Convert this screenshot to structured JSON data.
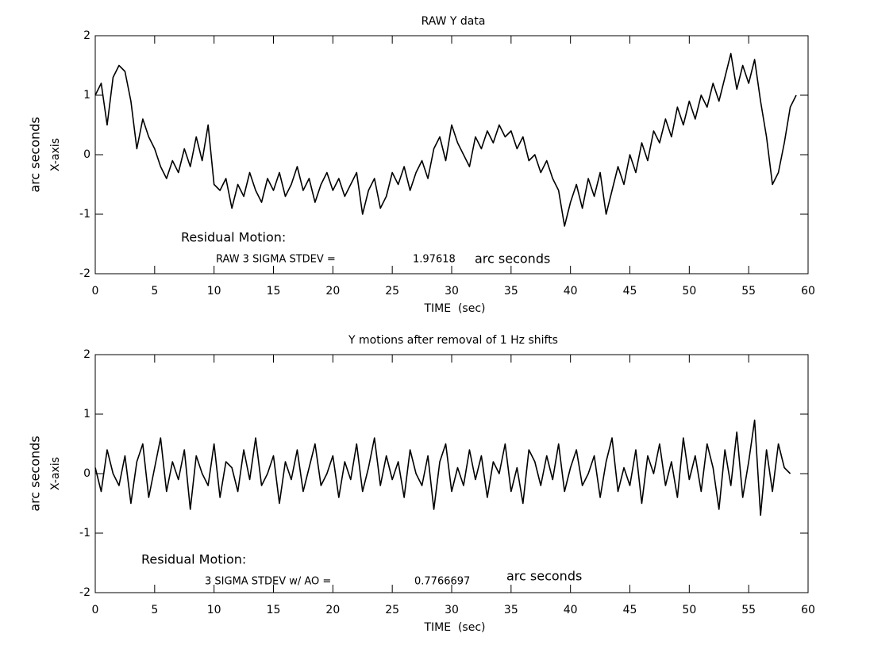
{
  "chart_data": [
    {
      "type": "line",
      "title": "RAW Y data",
      "xlabel": "TIME  (sec)",
      "ylabel": "arc seconds",
      "ylabel_sub": "X-axis",
      "annotations": [
        "Residual Motion:",
        "RAW 3 SIGMA STDEV =",
        "1.97618",
        "arc seconds"
      ],
      "xlim": [
        0,
        60
      ],
      "xticks": [
        0,
        5,
        10,
        15,
        20,
        25,
        30,
        35,
        40,
        45,
        50,
        55,
        60
      ],
      "ylim": [
        -2,
        2
      ],
      "yticks": [
        -2,
        -1,
        0,
        1,
        2
      ],
      "color": "#000000",
      "x": [
        0,
        0.5,
        1,
        1.5,
        2,
        2.5,
        3,
        3.5,
        4,
        4.5,
        5,
        5.5,
        6,
        6.5,
        7,
        7.5,
        8,
        8.5,
        9,
        9.5,
        10,
        10.5,
        11,
        11.5,
        12,
        12.5,
        13,
        13.5,
        14,
        14.5,
        15,
        15.5,
        16,
        16.5,
        17,
        17.5,
        18,
        18.5,
        19,
        19.5,
        20,
        20.5,
        21,
        21.5,
        22,
        22.5,
        23,
        23.5,
        24,
        24.5,
        25,
        25.5,
        26,
        26.5,
        27,
        27.5,
        28,
        28.5,
        29,
        29.5,
        30,
        30.5,
        31,
        31.5,
        32,
        32.5,
        33,
        33.5,
        34,
        34.5,
        35,
        35.5,
        36,
        36.5,
        37,
        37.5,
        38,
        38.5,
        39,
        39.5,
        40,
        40.5,
        41,
        41.5,
        42,
        42.5,
        43,
        43.5,
        44,
        44.5,
        45,
        45.5,
        46,
        46.5,
        47,
        47.5,
        48,
        48.5,
        49,
        49.5,
        50,
        50.5,
        51,
        51.5,
        52,
        52.5,
        53,
        53.5,
        54,
        54.5,
        55,
        55.5,
        56,
        56.5,
        57,
        57.5,
        58,
        58.5,
        59
      ],
      "values": [
        1.0,
        1.2,
        0.5,
        1.3,
        1.5,
        1.4,
        0.9,
        0.1,
        0.6,
        0.3,
        0.1,
        -0.2,
        -0.4,
        -0.1,
        -0.3,
        0.1,
        -0.2,
        0.3,
        -0.1,
        0.5,
        -0.5,
        -0.6,
        -0.4,
        -0.9,
        -0.5,
        -0.7,
        -0.3,
        -0.6,
        -0.8,
        -0.4,
        -0.6,
        -0.3,
        -0.7,
        -0.5,
        -0.2,
        -0.6,
        -0.4,
        -0.8,
        -0.5,
        -0.3,
        -0.6,
        -0.4,
        -0.7,
        -0.5,
        -0.3,
        -1.0,
        -0.6,
        -0.4,
        -0.9,
        -0.7,
        -0.3,
        -0.5,
        -0.2,
        -0.6,
        -0.3,
        -0.1,
        -0.4,
        0.1,
        0.3,
        -0.1,
        0.5,
        0.2,
        0.0,
        -0.2,
        0.3,
        0.1,
        0.4,
        0.2,
        0.5,
        0.3,
        0.4,
        0.1,
        0.3,
        -0.1,
        0.0,
        -0.3,
        -0.1,
        -0.4,
        -0.6,
        -1.2,
        -0.8,
        -0.5,
        -0.9,
        -0.4,
        -0.7,
        -0.3,
        -1.0,
        -0.6,
        -0.2,
        -0.5,
        0.0,
        -0.3,
        0.2,
        -0.1,
        0.4,
        0.2,
        0.6,
        0.3,
        0.8,
        0.5,
        0.9,
        0.6,
        1.0,
        0.8,
        1.2,
        0.9,
        1.3,
        1.7,
        1.1,
        1.5,
        1.2,
        1.6,
        0.9,
        0.3,
        -0.5,
        -0.3,
        0.2,
        0.8,
        1.0
      ]
    },
    {
      "type": "line",
      "title": "Y motions after removal of 1 Hz shifts",
      "xlabel": "TIME  (sec)",
      "ylabel": "arc seconds",
      "ylabel_sub": "X-axis",
      "annotations": [
        "Residual Motion:",
        "3 SIGMA STDEV w/ AO =",
        "0.7766697",
        "arc seconds"
      ],
      "xlim": [
        0,
        60
      ],
      "xticks": [
        0,
        5,
        10,
        15,
        20,
        25,
        30,
        35,
        40,
        45,
        50,
        55,
        60
      ],
      "ylim": [
        -2,
        2
      ],
      "yticks": [
        -2,
        -1,
        0,
        1,
        2
      ],
      "color": "#000000",
      "x": [
        0,
        0.5,
        1,
        1.5,
        2,
        2.5,
        3,
        3.5,
        4,
        4.5,
        5,
        5.5,
        6,
        6.5,
        7,
        7.5,
        8,
        8.5,
        9,
        9.5,
        10,
        10.5,
        11,
        11.5,
        12,
        12.5,
        13,
        13.5,
        14,
        14.5,
        15,
        15.5,
        16,
        16.5,
        17,
        17.5,
        18,
        18.5,
        19,
        19.5,
        20,
        20.5,
        21,
        21.5,
        22,
        22.5,
        23,
        23.5,
        24,
        24.5,
        25,
        25.5,
        26,
        26.5,
        27,
        27.5,
        28,
        28.5,
        29,
        29.5,
        30,
        30.5,
        31,
        31.5,
        32,
        32.5,
        33,
        33.5,
        34,
        34.5,
        35,
        35.5,
        36,
        36.5,
        37,
        37.5,
        38,
        38.5,
        39,
        39.5,
        40,
        40.5,
        41,
        41.5,
        42,
        42.5,
        43,
        43.5,
        44,
        44.5,
        45,
        45.5,
        46,
        46.5,
        47,
        47.5,
        48,
        48.5,
        49,
        49.5,
        50,
        50.5,
        51,
        51.5,
        52,
        52.5,
        53,
        53.5,
        54,
        54.5,
        55,
        55.5,
        56,
        56.5,
        57,
        57.5,
        58,
        58.5
      ],
      "values": [
        0.1,
        -0.3,
        0.4,
        0.0,
        -0.2,
        0.3,
        -0.5,
        0.2,
        0.5,
        -0.4,
        0.1,
        0.6,
        -0.3,
        0.2,
        -0.1,
        0.4,
        -0.6,
        0.3,
        0.0,
        -0.2,
        0.5,
        -0.4,
        0.2,
        0.1,
        -0.3,
        0.4,
        -0.1,
        0.6,
        -0.2,
        0.0,
        0.3,
        -0.5,
        0.2,
        -0.1,
        0.4,
        -0.3,
        0.1,
        0.5,
        -0.2,
        0.0,
        0.3,
        -0.4,
        0.2,
        -0.1,
        0.5,
        -0.3,
        0.1,
        0.6,
        -0.2,
        0.3,
        -0.1,
        0.2,
        -0.4,
        0.4,
        0.0,
        -0.2,
        0.3,
        -0.6,
        0.2,
        0.5,
        -0.3,
        0.1,
        -0.2,
        0.4,
        -0.1,
        0.3,
        -0.4,
        0.2,
        0.0,
        0.5,
        -0.3,
        0.1,
        -0.5,
        0.4,
        0.2,
        -0.2,
        0.3,
        -0.1,
        0.5,
        -0.3,
        0.1,
        0.4,
        -0.2,
        0.0,
        0.3,
        -0.4,
        0.2,
        0.6,
        -0.3,
        0.1,
        -0.2,
        0.4,
        -0.5,
        0.3,
        0.0,
        0.5,
        -0.2,
        0.2,
        -0.4,
        0.6,
        -0.1,
        0.3,
        -0.3,
        0.5,
        0.1,
        -0.6,
        0.4,
        -0.2,
        0.7,
        -0.4,
        0.2,
        0.9,
        -0.7,
        0.4,
        -0.3,
        0.5,
        0.1,
        0.0
      ]
    }
  ]
}
